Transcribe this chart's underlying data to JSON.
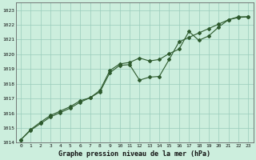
{
  "title": "Graphe pression niveau de la mer (hPa)",
  "bg_color": "#cceedd",
  "grid_color": "#99ccbb",
  "line_color": "#2d5a2d",
  "marker_color": "#2d5a2d",
  "x_labels": [
    "0",
    "1",
    "2",
    "3",
    "4",
    "5",
    "6",
    "7",
    "8",
    "9",
    "10",
    "11",
    "12",
    "13",
    "14",
    "15",
    "16",
    "17",
    "18",
    "19",
    "20",
    "21",
    "22",
    "23"
  ],
  "ylim": [
    1014.0,
    1023.5
  ],
  "yticks": [
    1014,
    1015,
    1016,
    1017,
    1018,
    1019,
    1020,
    1021,
    1022,
    1023
  ],
  "series1": [
    1014.2,
    1014.9,
    1015.4,
    1015.85,
    1016.15,
    1016.45,
    1016.85,
    1017.05,
    1017.55,
    1018.9,
    1019.35,
    1019.45,
    1019.75,
    1019.55,
    1019.65,
    1020.05,
    1020.35,
    1021.55,
    1020.95,
    1021.25,
    1021.85,
    1022.35,
    1022.55,
    1022.55
  ],
  "series2": [
    1014.2,
    1014.85,
    1015.3,
    1015.75,
    1016.05,
    1016.35,
    1016.75,
    1017.05,
    1017.45,
    1018.75,
    1019.25,
    1019.3,
    1018.25,
    1018.45,
    1018.5,
    1019.65,
    1020.85,
    1021.15,
    1021.45,
    1021.75,
    1022.05,
    1022.35,
    1022.5,
    1022.55
  ]
}
